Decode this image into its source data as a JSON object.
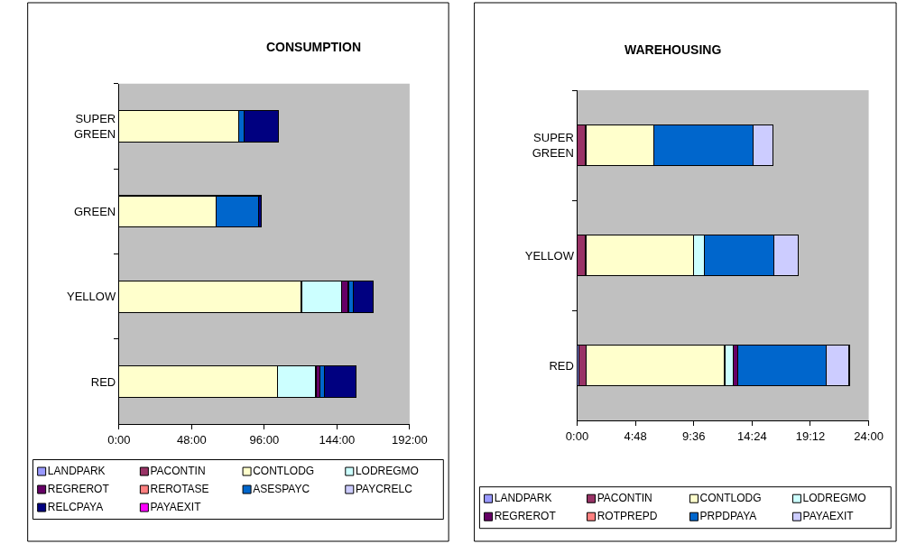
{
  "chart_data": [
    {
      "type": "bar",
      "orientation": "horizontal",
      "stacked": true,
      "title": "CONSUMPTION",
      "categories": [
        "SUPER GREEN",
        "GREEN",
        "YELLOW",
        "RED"
      ],
      "xlim": [
        0,
        192
      ],
      "xticks": [
        {
          "value": 0,
          "label": "0:00"
        },
        {
          "value": 48,
          "label": "48:00"
        },
        {
          "value": 96,
          "label": "96:00"
        },
        {
          "value": 144,
          "label": "144:00"
        },
        {
          "value": 192,
          "label": "192:00"
        }
      ],
      "grid": false,
      "legend": "bottom",
      "series": [
        {
          "name": "LANDPARK",
          "color": "#9999ff",
          "values": [
            null,
            null,
            null,
            null
          ]
        },
        {
          "name": "PACONTIN",
          "color": "#993366",
          "values": [
            null,
            null,
            null,
            null
          ]
        },
        {
          "name": "CONTLODG",
          "color": "#ffffcc",
          "values": [
            79,
            64,
            120.5,
            104.5
          ]
        },
        {
          "name": "LODREGMO",
          "color": "#ccffff",
          "values": [
            null,
            null,
            26.5,
            25.5
          ]
        },
        {
          "name": "REGREROT",
          "color": "#660066",
          "values": [
            null,
            null,
            4.5,
            2.5
          ]
        },
        {
          "name": "REROTASE",
          "color": "#ff8080",
          "values": [
            null,
            null,
            null,
            null
          ]
        },
        {
          "name": "ASESPAYC",
          "color": "#0066cc",
          "values": [
            3.5,
            28,
            3.5,
            3
          ]
        },
        {
          "name": "PAYCRELC",
          "color": "#ccccff",
          "values": [
            null,
            null,
            null,
            null
          ]
        },
        {
          "name": "RELCPAYA",
          "color": "#000080",
          "values": [
            23,
            2,
            13,
            21
          ]
        },
        {
          "name": "PAYAEXIT",
          "color": "#ff00ff",
          "values": [
            null,
            null,
            null,
            null
          ]
        }
      ]
    },
    {
      "type": "bar",
      "orientation": "horizontal",
      "stacked": true,
      "title": "WAREHOUSING",
      "categories": [
        "SUPER GREEN",
        "YELLOW",
        "RED"
      ],
      "xlim": [
        0,
        24
      ],
      "xticks": [
        {
          "value": 0,
          "label": "0:00"
        },
        {
          "value": 4.8,
          "label": "4:48"
        },
        {
          "value": 9.6,
          "label": "9:36"
        },
        {
          "value": 14.4,
          "label": "14:24"
        },
        {
          "value": 19.2,
          "label": "19:12"
        },
        {
          "value": 24,
          "label": "24:00"
        }
      ],
      "grid": false,
      "legend": "bottom",
      "series": [
        {
          "name": "LANDPARK",
          "color": "#9999ff",
          "values": [
            null,
            null,
            0.15
          ]
        },
        {
          "name": "PACONTIN",
          "color": "#993366",
          "values": [
            0.7,
            0.7,
            0.6
          ]
        },
        {
          "name": "CONTLODG",
          "color": "#ffffcc",
          "values": [
            5.6,
            8.9,
            11.4
          ]
        },
        {
          "name": "LODREGMO",
          "color": "#ccffff",
          "values": [
            null,
            0.9,
            0.7
          ]
        },
        {
          "name": "REGREROT",
          "color": "#660066",
          "values": [
            null,
            null,
            0.35
          ]
        },
        {
          "name": "ROTPREPD",
          "color": "#ff8080",
          "values": [
            null,
            null,
            null
          ]
        },
        {
          "name": "PRPDPAYA",
          "color": "#0066cc",
          "values": [
            8.2,
            5.7,
            7.3
          ]
        },
        {
          "name": "PAYAEXIT",
          "color": "#ccccff",
          "values": [
            1.6,
            2.0,
            1.9
          ]
        }
      ]
    }
  ]
}
